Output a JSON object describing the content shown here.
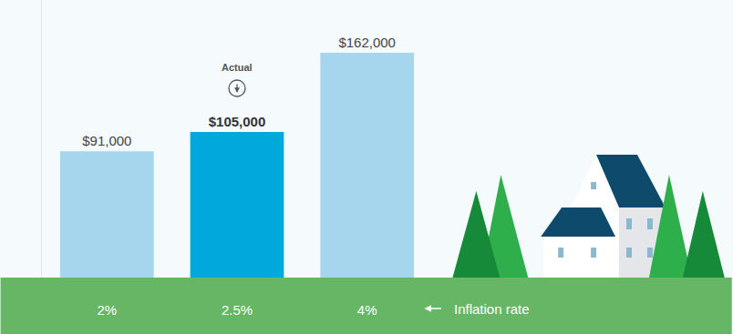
{
  "chart_data": {
    "type": "bar",
    "categories": [
      "2%",
      "2.5%",
      "4%"
    ],
    "values": [
      91000,
      105000,
      162000
    ],
    "value_labels": [
      "$91,000",
      "$105,000",
      "$162,000"
    ],
    "colors": [
      "#a6d6ee",
      "#00a8dc",
      "#a6d6ee"
    ],
    "data_labels": true,
    "x_label": "Inflation rate",
    "annotations": [
      {
        "text": "Actual",
        "category": "2.5%"
      }
    ],
    "ylim": [
      0,
      200000
    ],
    "tick_labels": "x",
    "grid": false
  }
}
